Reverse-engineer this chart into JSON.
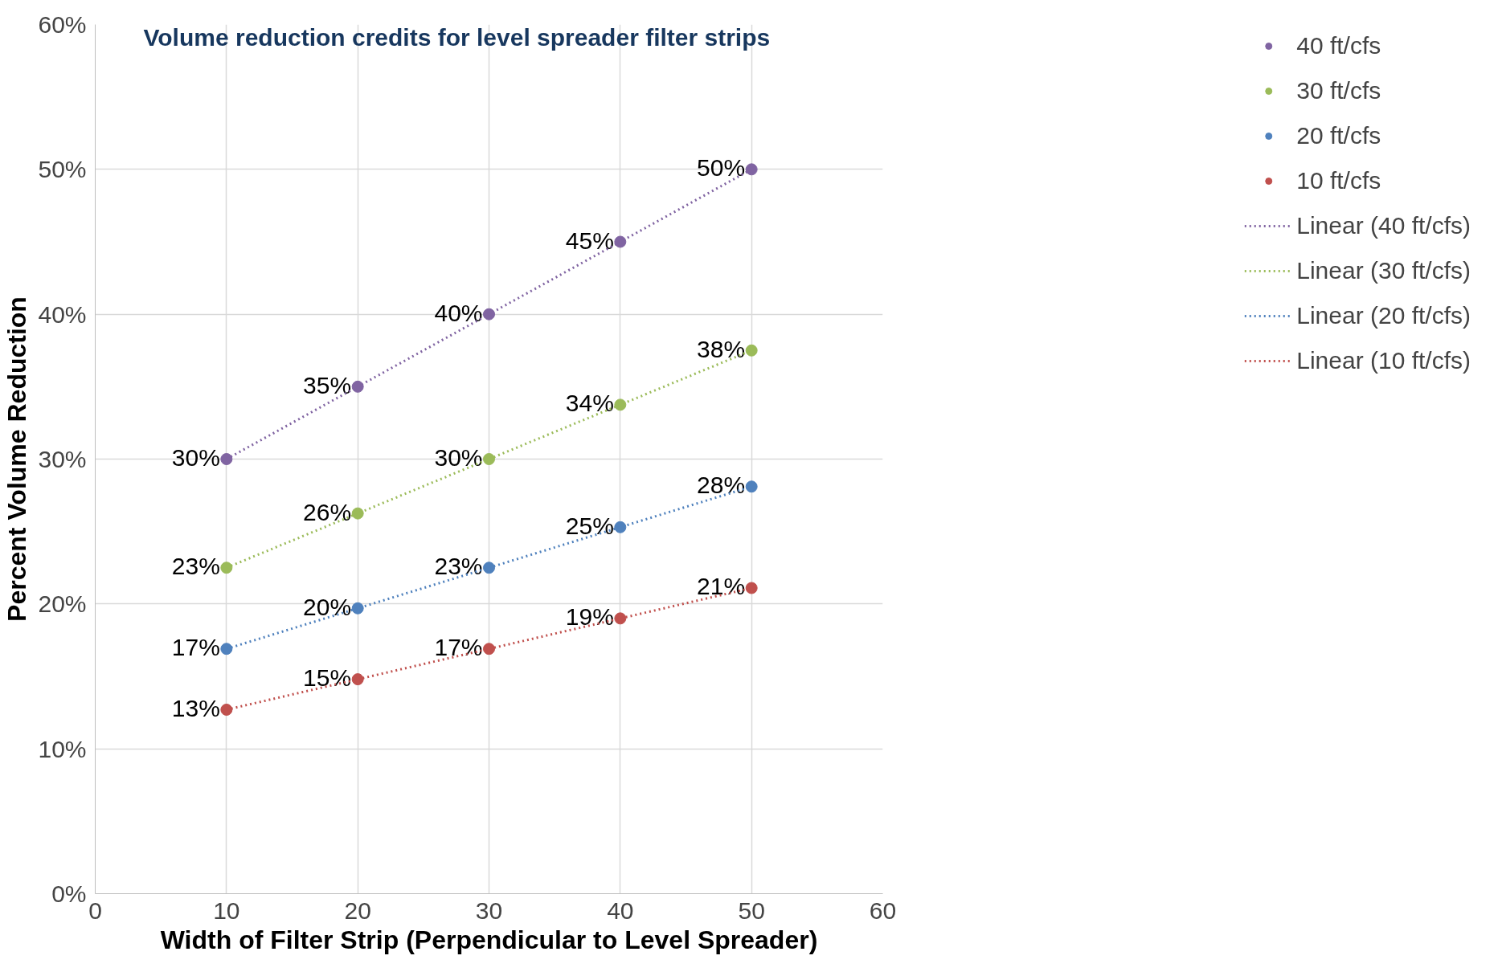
{
  "chart_data": {
    "type": "scatter",
    "title": "Volume reduction credits for level spreader filter strips",
    "xlabel": "Width of Filter Strip (Perpendicular to Level Spreader)",
    "ylabel": "Percent Volume Reduction",
    "x": [
      10,
      20,
      30,
      40,
      50
    ],
    "series": [
      {
        "name": "40 ft/cfs",
        "color": "#8064a2",
        "values": [
          30,
          35,
          40,
          45,
          50
        ],
        "value_labels": [
          "30%",
          "35%",
          "40%",
          "45%",
          "50%"
        ]
      },
      {
        "name": "30 ft/cfs",
        "color": "#9bbb59",
        "values": [
          22.5,
          26.25,
          30,
          33.75,
          37.5
        ],
        "value_labels": [
          "23%",
          "26%",
          "30%",
          "34%",
          "38%"
        ]
      },
      {
        "name": "20 ft/cfs",
        "color": "#4f81bd",
        "values": [
          16.9,
          19.7,
          22.5,
          25.3,
          28.1
        ],
        "value_labels": [
          "17%",
          "20%",
          "23%",
          "25%",
          "28%"
        ]
      },
      {
        "name": "10 ft/cfs",
        "color": "#c0504d",
        "values": [
          12.7,
          14.8,
          16.9,
          19.0,
          21.1
        ],
        "value_labels": [
          "13%",
          "15%",
          "17%",
          "19%",
          "21%"
        ]
      },
      {
        "name": "Linear (40 ft/cfs)",
        "type": "line",
        "line_style": "dotted",
        "marker": "none",
        "color": "#8064a2",
        "values": [
          30,
          35,
          40,
          45,
          50
        ]
      },
      {
        "name": "Linear (30 ft/cfs)",
        "type": "line",
        "line_style": "dotted",
        "marker": "none",
        "color": "#9bbb59",
        "values": [
          22.5,
          26.25,
          30,
          33.75,
          37.5
        ]
      },
      {
        "name": "Linear (20 ft/cfs)",
        "type": "line",
        "line_style": "dotted",
        "marker": "none",
        "color": "#4f81bd",
        "values": [
          16.9,
          19.7,
          22.5,
          25.3,
          28.1
        ]
      },
      {
        "name": "Linear (10 ft/cfs)",
        "type": "line",
        "line_style": "dotted",
        "marker": "none",
        "color": "#c0504d",
        "values": [
          12.7,
          14.8,
          16.9,
          19.0,
          21.1
        ]
      }
    ],
    "xlim": [
      0,
      60
    ],
    "xticks": [
      0,
      10,
      20,
      30,
      40,
      50,
      60
    ],
    "ylim": [
      0,
      60
    ],
    "yticks": [
      {
        "value": 0,
        "label": "0%"
      },
      {
        "value": 10,
        "label": "10%"
      },
      {
        "value": 20,
        "label": "20%"
      },
      {
        "value": 30,
        "label": "30%"
      },
      {
        "value": 40,
        "label": "40%"
      },
      {
        "value": 50,
        "label": "50%"
      },
      {
        "value": 60,
        "label": "60%"
      }
    ],
    "grid": true,
    "legend": "right",
    "marker": "circle"
  }
}
